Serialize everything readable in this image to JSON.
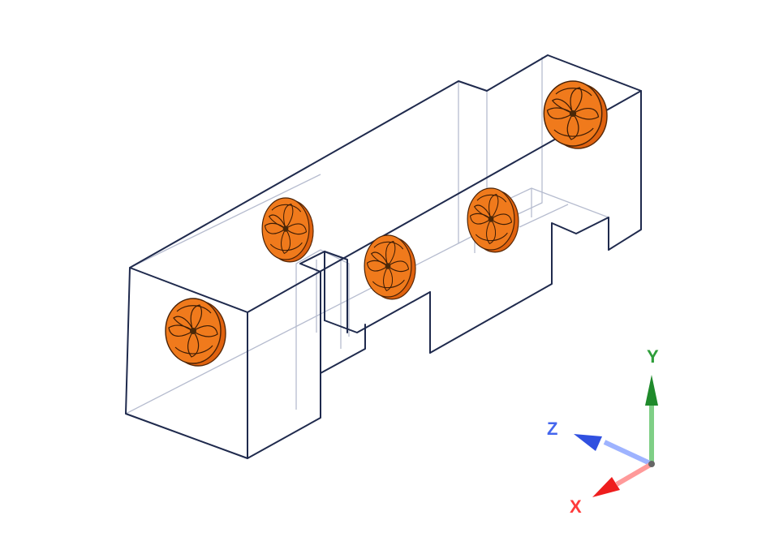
{
  "scene": {
    "model": {
      "fan_count": 5
    },
    "colors": {
      "edge": "#1f2a4d",
      "hidden_edge": "#b6bccf",
      "fan_body": "#f07a1c",
      "fan_outline": "#4a2206"
    }
  },
  "triad": {
    "x": {
      "label": "X",
      "color": "#ff3b3b"
    },
    "y": {
      "label": "Y",
      "color": "#2e9e3a"
    },
    "z": {
      "label": "Z",
      "color": "#4466ee"
    }
  }
}
